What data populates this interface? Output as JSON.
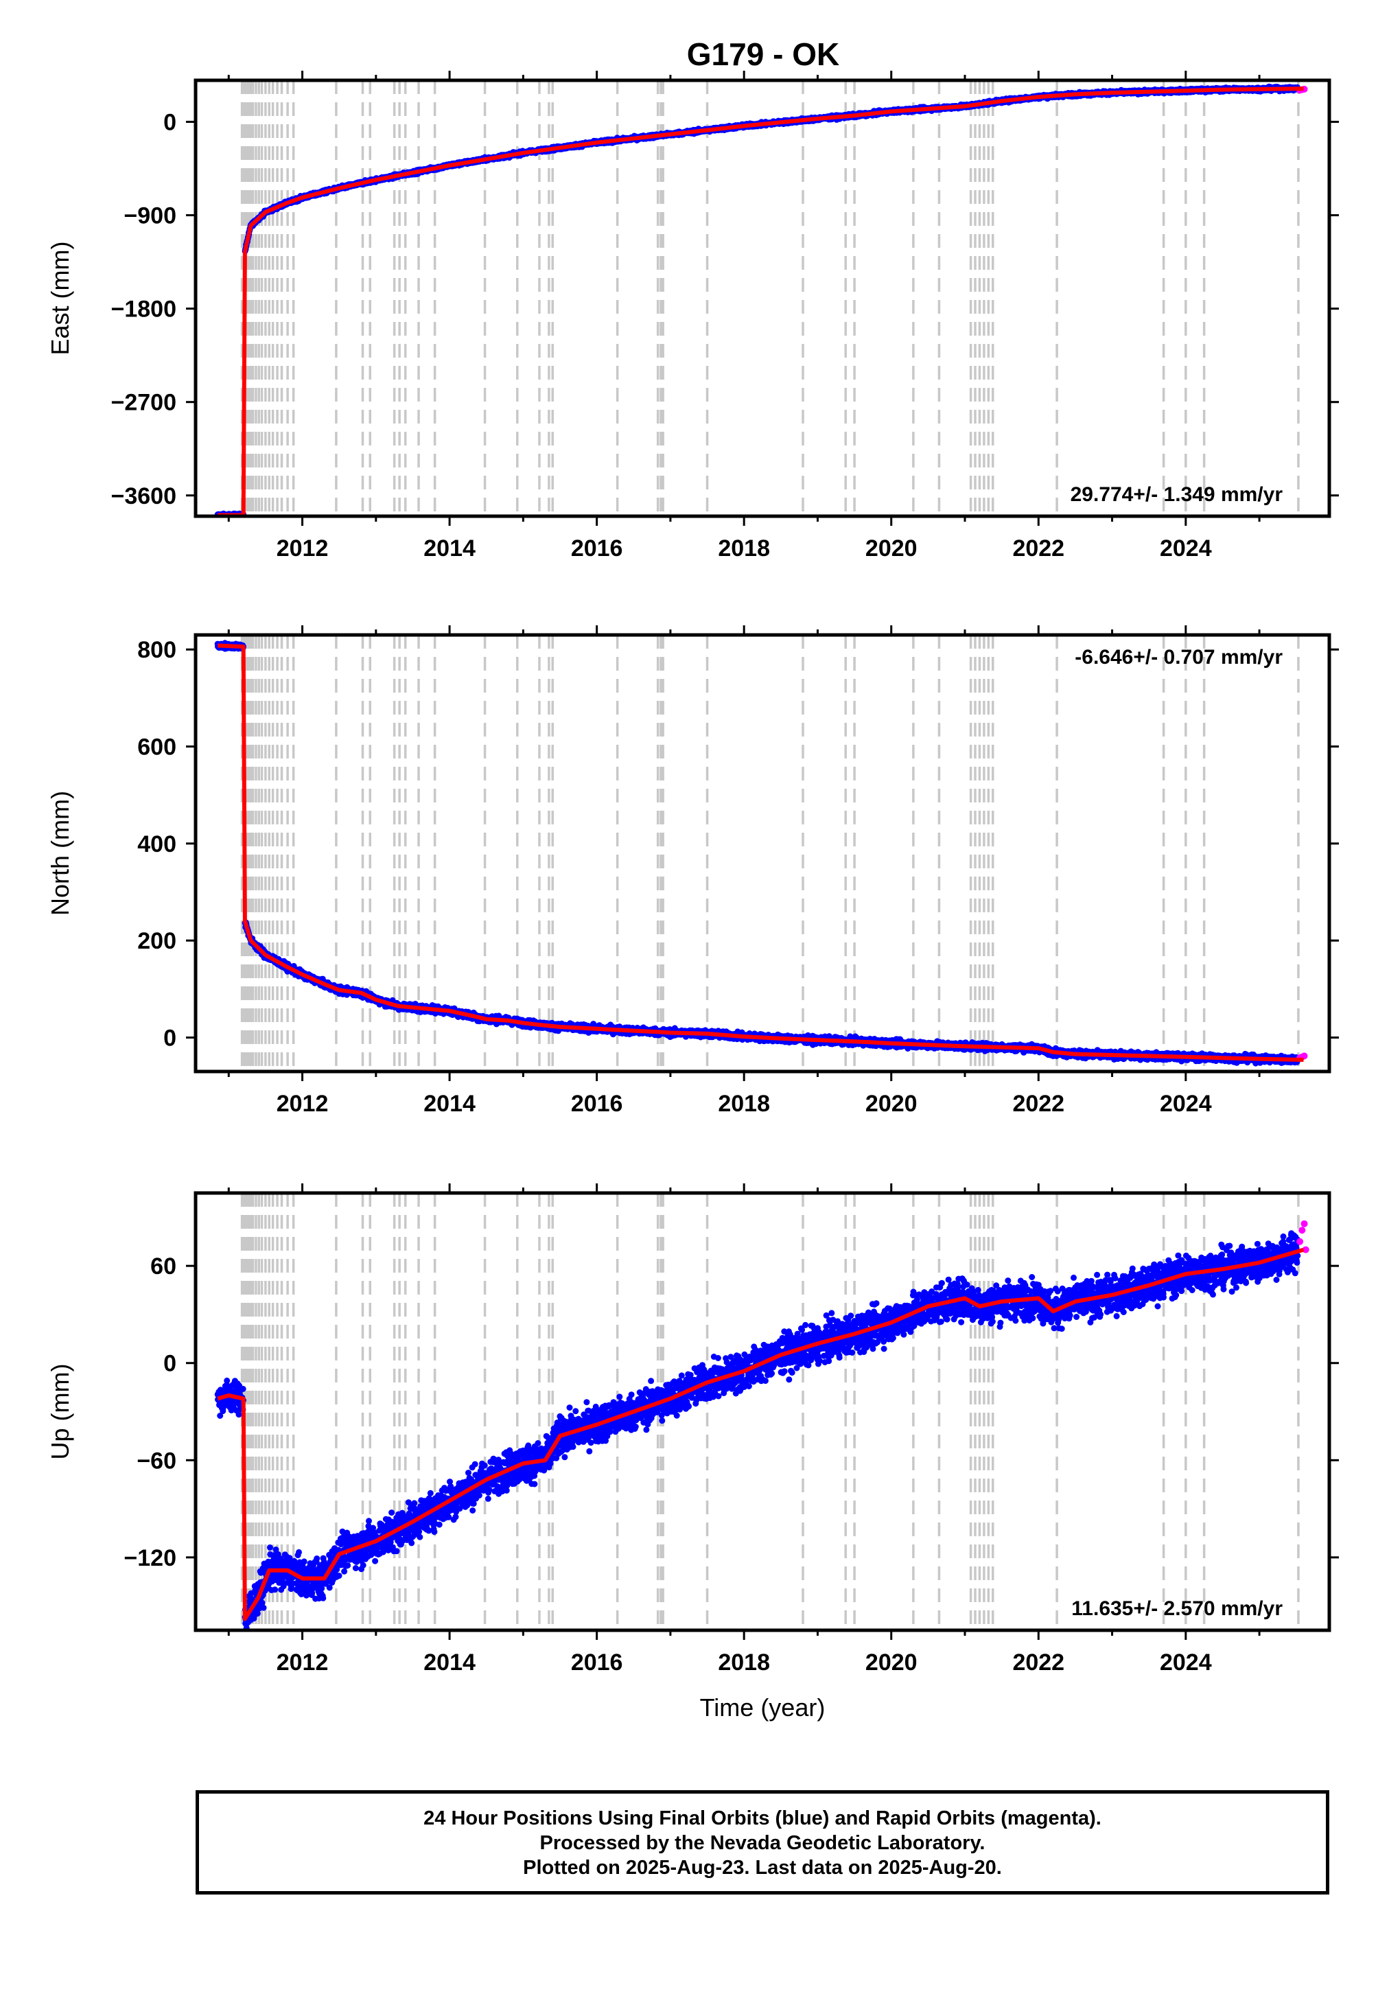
{
  "title": "G179 - OK",
  "colors": {
    "final": "#0000ff",
    "rapid": "#ff00ff",
    "model": "#ff0000",
    "steps": "#c8c8c8"
  },
  "xlabel": "Time (year)",
  "caption": [
    "24 Hour Positions Using Final Orbits (blue) and Rapid Orbits (magenta).",
    "Processed by the Nevada Geodetic Laboratory.",
    "Plotted on 2025-Aug-23. Last data on 2025-Aug-20."
  ],
  "chart_data": [
    {
      "type": "scatter",
      "title": "G179 - OK",
      "xlabel": "",
      "ylabel": "East (mm)",
      "xlim": [
        2010.55,
        2025.95
      ],
      "ylim": [
        -3800,
        400
      ],
      "xticks": [
        2012,
        2014,
        2016,
        2018,
        2020,
        2022,
        2024
      ],
      "yticks": [
        0,
        -900,
        -1800,
        -2700,
        -3600
      ],
      "rate": "29.774+/- 1.349 mm/yr",
      "rate_position": "bottom-right",
      "model": [
        [
          2010.85,
          -3790
        ],
        [
          2011.2,
          -3790
        ],
        [
          2011.22,
          -1250
        ],
        [
          2011.3,
          -1000
        ],
        [
          2011.5,
          -870
        ],
        [
          2011.8,
          -780
        ],
        [
          2012.0,
          -730
        ],
        [
          2012.5,
          -640
        ],
        [
          2013.0,
          -560
        ],
        [
          2013.5,
          -490
        ],
        [
          2014.0,
          -420
        ],
        [
          2014.5,
          -360
        ],
        [
          2015.0,
          -300
        ],
        [
          2015.5,
          -250
        ],
        [
          2016.0,
          -200
        ],
        [
          2016.5,
          -160
        ],
        [
          2017.0,
          -120
        ],
        [
          2017.5,
          -80
        ],
        [
          2018.0,
          -40
        ],
        [
          2018.5,
          -5
        ],
        [
          2019.0,
          30
        ],
        [
          2019.5,
          60
        ],
        [
          2020.0,
          100
        ],
        [
          2020.5,
          125
        ],
        [
          2021.0,
          150
        ],
        [
          2021.2,
          170
        ],
        [
          2021.5,
          200
        ],
        [
          2022.0,
          240
        ],
        [
          2022.5,
          265
        ],
        [
          2023.0,
          280
        ],
        [
          2023.5,
          290
        ],
        [
          2024.0,
          300
        ],
        [
          2024.5,
          310
        ],
        [
          2025.0,
          315
        ],
        [
          2025.6,
          320
        ]
      ],
      "scatter_spread": 12,
      "rapid": [
        [
          2025.55,
          305
        ],
        [
          2025.58,
          310
        ],
        [
          2025.61,
          315
        ]
      ]
    },
    {
      "type": "scatter",
      "xlabel": "",
      "ylabel": "North (mm)",
      "xlim": [
        2010.55,
        2025.95
      ],
      "ylim": [
        -70,
        830
      ],
      "xticks": [
        2012,
        2014,
        2016,
        2018,
        2020,
        2022,
        2024
      ],
      "yticks": [
        800,
        600,
        400,
        200,
        0
      ],
      "rate": "-6.646+/- 0.707 mm/yr",
      "rate_position": "top-right",
      "model": [
        [
          2010.85,
          808
        ],
        [
          2011.2,
          806
        ],
        [
          2011.22,
          240
        ],
        [
          2011.3,
          200
        ],
        [
          2011.5,
          170
        ],
        [
          2011.8,
          145
        ],
        [
          2012.0,
          130
        ],
        [
          2012.3,
          110
        ],
        [
          2012.5,
          98
        ],
        [
          2012.8,
          92
        ],
        [
          2013.0,
          78
        ],
        [
          2013.3,
          65
        ],
        [
          2013.5,
          62
        ],
        [
          2014.0,
          55
        ],
        [
          2014.3,
          45
        ],
        [
          2014.5,
          38
        ],
        [
          2014.8,
          35
        ],
        [
          2015.0,
          30
        ],
        [
          2015.3,
          25
        ],
        [
          2015.5,
          22
        ],
        [
          2016.0,
          18
        ],
        [
          2016.5,
          14
        ],
        [
          2016.8,
          12
        ],
        [
          2017.0,
          10
        ],
        [
          2017.5,
          8
        ],
        [
          2018.0,
          2
        ],
        [
          2018.5,
          -2
        ],
        [
          2019.0,
          -5
        ],
        [
          2019.5,
          -8
        ],
        [
          2020.0,
          -12
        ],
        [
          2020.5,
          -15
        ],
        [
          2021.0,
          -18
        ],
        [
          2021.5,
          -20
        ],
        [
          2022.0,
          -22
        ],
        [
          2022.2,
          -30
        ],
        [
          2022.5,
          -34
        ],
        [
          2023.0,
          -36
        ],
        [
          2023.5,
          -38
        ],
        [
          2024.0,
          -40
        ],
        [
          2024.5,
          -42
        ],
        [
          2025.0,
          -44
        ],
        [
          2025.6,
          -46
        ]
      ],
      "scatter_spread": 5,
      "rapid": [
        [
          2025.55,
          -42
        ],
        [
          2025.58,
          -40
        ],
        [
          2025.61,
          -38
        ]
      ]
    },
    {
      "type": "scatter",
      "xlabel": "Time (year)",
      "ylabel": "Up (mm)",
      "xlim": [
        2010.55,
        2025.95
      ],
      "ylim": [
        -165,
        105
      ],
      "xticks": [
        2012,
        2014,
        2016,
        2018,
        2020,
        2022,
        2024
      ],
      "yticks": [
        60,
        0,
        -60,
        -120
      ],
      "rate": "11.635+/- 2.570 mm/yr",
      "rate_position": "bottom-right",
      "model": [
        [
          2010.85,
          -22
        ],
        [
          2011.0,
          -20
        ],
        [
          2011.2,
          -22
        ],
        [
          2011.22,
          -158
        ],
        [
          2011.4,
          -145
        ],
        [
          2011.55,
          -128
        ],
        [
          2011.8,
          -128
        ],
        [
          2012.0,
          -133
        ],
        [
          2012.3,
          -133
        ],
        [
          2012.5,
          -118
        ],
        [
          2013.0,
          -110
        ],
        [
          2013.5,
          -98
        ],
        [
          2014.0,
          -85
        ],
        [
          2014.5,
          -72
        ],
        [
          2015.0,
          -62
        ],
        [
          2015.3,
          -60
        ],
        [
          2015.5,
          -45
        ],
        [
          2016.0,
          -38
        ],
        [
          2016.5,
          -30
        ],
        [
          2017.0,
          -22
        ],
        [
          2017.5,
          -12
        ],
        [
          2018.0,
          -5
        ],
        [
          2018.5,
          5
        ],
        [
          2019.0,
          12
        ],
        [
          2019.5,
          18
        ],
        [
          2020.0,
          25
        ],
        [
          2020.5,
          35
        ],
        [
          2021.0,
          40
        ],
        [
          2021.2,
          35
        ],
        [
          2021.5,
          38
        ],
        [
          2022.0,
          40
        ],
        [
          2022.2,
          32
        ],
        [
          2022.5,
          38
        ],
        [
          2023.0,
          42
        ],
        [
          2023.5,
          48
        ],
        [
          2024.0,
          55
        ],
        [
          2024.5,
          58
        ],
        [
          2025.0,
          62
        ],
        [
          2025.6,
          70
        ]
      ],
      "scatter_spread": 8,
      "rapid": [
        [
          2025.55,
          75
        ],
        [
          2025.58,
          82
        ],
        [
          2025.61,
          86
        ],
        [
          2025.63,
          70
        ]
      ]
    }
  ],
  "step_lines": [
    2011.18,
    2011.21,
    2011.24,
    2011.27,
    2011.3,
    2011.33,
    2011.37,
    2011.41,
    2011.45,
    2011.5,
    2011.55,
    2011.6,
    2011.66,
    2011.72,
    2011.8,
    2011.88,
    2012.46,
    2012.82,
    2012.92,
    2013.25,
    2013.32,
    2013.4,
    2013.58,
    2013.8,
    2014.48,
    2014.92,
    2015.22,
    2015.35,
    2015.4,
    2016.28,
    2016.83,
    2016.87,
    2016.9,
    2017.5,
    2018.8,
    2019.38,
    2019.5,
    2020.3,
    2020.65,
    2021.08,
    2021.14,
    2021.2,
    2021.26,
    2021.32,
    2021.38,
    2022.25,
    2023.7,
    2024.0,
    2024.25,
    2025.53
  ]
}
